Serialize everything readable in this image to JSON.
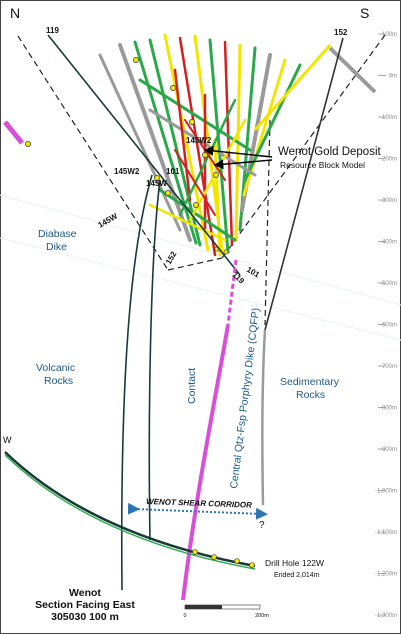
{
  "compass": {
    "north": "N",
    "south": "S"
  },
  "hole_ids": {
    "h119_top": "119",
    "h152_top": "152",
    "h145w2_a": "145W2",
    "h145w2_b": "145W2",
    "h145w": "145W",
    "h145w_b": "145W",
    "h101_a": "101",
    "h101_b": "101",
    "h152_bot": "152",
    "h119_bot": "119"
  },
  "deposit_label": {
    "title": "Wenot Gold Deposit",
    "subtitle": "Resource Block Model"
  },
  "rock_labels": {
    "diabase_1": "Diabase",
    "diabase_2": "Dike",
    "volcanic_1": "Volcanic",
    "volcanic_2": "Rocks",
    "sedimentary_1": "Sedimentary",
    "sedimentary_2": "Rocks",
    "contact": "Contact",
    "porphyry": "Central Qtz-Fsp Porphyry Dike (CQFP)"
  },
  "shear_corridor": "WENOT SHEAR CORRIDOR",
  "question_mark": "?",
  "drill_hole_note": {
    "title": "Drill Hole 122W",
    "subtitle": "Ended 2,014m"
  },
  "section_title": {
    "line1": "Wenot",
    "line2": "Section Facing East",
    "line3": "305030 100 m"
  },
  "scale_bar": {
    "start": "0",
    "end": "200m"
  },
  "depth_ticks": [
    "100m",
    "0m",
    "-100m",
    "-200m",
    "-300m",
    "-400m",
    "-500m",
    "-600m",
    "-700m",
    "-800m",
    "-900m",
    "-1,000m",
    "-1,100m",
    "-1,200m",
    "-1,300m"
  ],
  "edge_letter": "W",
  "colors": {
    "porphyry_dike": "#d94fd9",
    "label_blue": "#1f5a82",
    "shear_arrow": "#2e75b6",
    "drill_trace": "#1a3a3a",
    "mineralized_red": "#d42020",
    "mineralized_yellow": "#f2e600",
    "altered_green": "#2aa84a"
  }
}
